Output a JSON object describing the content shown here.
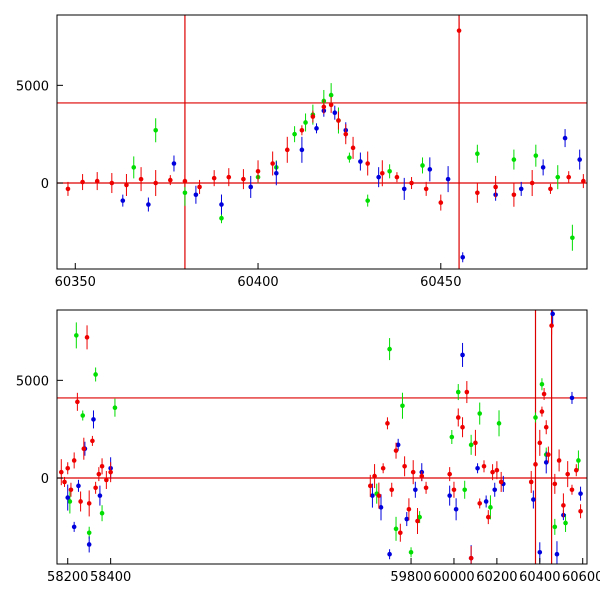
{
  "colors": {
    "frame": "#000000",
    "ref_line": "#dd0000",
    "green": "#00dd00",
    "blue": "#0000dd",
    "red": "#ee0000"
  },
  "chart_data": [
    {
      "type": "scatter",
      "xlim": [
        60345,
        60490
      ],
      "ylim": [
        -4400,
        8600
      ],
      "xticks": [
        60350,
        60400,
        60450
      ],
      "yticks": [
        0,
        5000
      ],
      "hlines": [
        0,
        4100
      ],
      "vlines": [
        60380,
        60455
      ],
      "series": [
        {
          "color": "green",
          "x": [
            60366,
            60372,
            60380,
            60390,
            60400,
            60405,
            60410,
            60413,
            60415,
            60418,
            60420,
            60422,
            60425,
            60430,
            60436,
            60445,
            60460,
            60470,
            60476,
            60482,
            60486
          ],
          "y": [
            800,
            2700,
            -500,
            -1800,
            300,
            800,
            2500,
            3100,
            3500,
            4200,
            4500,
            3200,
            1300,
            -900,
            600,
            900,
            1500,
            1200,
            1400,
            300,
            -2800
          ]
        },
        {
          "color": "blue",
          "x": [
            60363,
            60370,
            60377,
            60383,
            60390,
            60398,
            60405,
            60412,
            60416,
            60418,
            60421,
            60424,
            60428,
            60433,
            60440,
            60447,
            60452,
            60456,
            60465,
            60472,
            60478,
            60484,
            60488
          ],
          "y": [
            -900,
            -1100,
            1000,
            -600,
            -1100,
            -200,
            500,
            1700,
            2800,
            3700,
            3600,
            2700,
            1100,
            300,
            -300,
            700,
            200,
            -3800,
            -600,
            -300,
            800,
            2300,
            1200
          ]
        },
        {
          "color": "red",
          "x": [
            60348,
            60352,
            60356,
            60360,
            60364,
            60368,
            60372,
            60376,
            60380,
            60384,
            60388,
            60392,
            60396,
            60400,
            60404,
            60408,
            60412,
            60415,
            60418,
            60420,
            60422,
            60424,
            60426,
            60430,
            60434,
            60438,
            60442,
            60446,
            60450,
            60455,
            60460,
            60465,
            60470,
            60475,
            60480,
            60485,
            60489
          ],
          "y": [
            -300,
            50,
            100,
            0,
            -100,
            200,
            0,
            150,
            100,
            -200,
            250,
            300,
            200,
            600,
            1000,
            1700,
            2700,
            3400,
            3900,
            4000,
            3200,
            2500,
            1800,
            1000,
            500,
            300,
            0,
            -300,
            -1000,
            7800,
            -500,
            -200,
            -600,
            0,
            -300,
            300,
            100
          ]
        }
      ]
    },
    {
      "type": "scatter",
      "xlim": [
        58150,
        60620
      ],
      "ylim": [
        -4400,
        8600
      ],
      "xticks": [
        58200,
        58400,
        59800,
        60000,
        60200,
        60400,
        60600
      ],
      "yticks": [
        0,
        5000
      ],
      "hlines": [
        0,
        4100
      ],
      "vlines": [
        60380,
        60455
      ],
      "series": [
        {
          "color": "green",
          "x": [
            58210,
            58240,
            58270,
            58300,
            58330,
            58360,
            58420,
            59640,
            59700,
            59730,
            59760,
            59800,
            59840,
            59990,
            60020,
            60050,
            60080,
            60120,
            60170,
            60210,
            60380,
            60410,
            60430,
            60470,
            60520,
            60580
          ],
          "y": [
            -1200,
            7300,
            3200,
            -2800,
            5300,
            -1800,
            3600,
            -800,
            6600,
            -2600,
            3700,
            -3800,
            -2000,
            2100,
            4400,
            -600,
            1700,
            3300,
            -1500,
            2800,
            3100,
            4800,
            1200,
            -2500,
            -2300,
            900
          ]
        },
        {
          "color": "blue",
          "x": [
            58200,
            58230,
            58250,
            58280,
            58300,
            58320,
            58350,
            58400,
            59620,
            59660,
            59700,
            59740,
            59780,
            59820,
            59850,
            59980,
            60010,
            60040,
            60080,
            60110,
            60150,
            60190,
            60230,
            60370,
            60400,
            60430,
            60460,
            60480,
            60510,
            60550,
            60590
          ],
          "y": [
            -1000,
            -2500,
            -400,
            1500,
            -3400,
            3000,
            -900,
            500,
            -900,
            -1500,
            -3900,
            1700,
            -2100,
            -600,
            300,
            -900,
            -1600,
            6300,
            -4100,
            500,
            -1200,
            -600,
            -300,
            -1100,
            -3800,
            800,
            8400,
            -3900,
            -1900,
            4100,
            -800
          ]
        },
        {
          "color": "red",
          "x": [
            58170,
            58185,
            58200,
            58215,
            58230,
            58245,
            58260,
            58275,
            58290,
            58300,
            58315,
            58330,
            58345,
            58360,
            58380,
            58400,
            59610,
            59630,
            59650,
            59670,
            59690,
            59710,
            59730,
            59750,
            59770,
            59790,
            59810,
            59830,
            59850,
            59870,
            59980,
            60000,
            60020,
            60040,
            60060,
            60080,
            60100,
            60120,
            60140,
            60160,
            60180,
            60200,
            60220,
            60360,
            60380,
            60400,
            60410,
            60420,
            60430,
            60440,
            60455,
            60470,
            60490,
            60510,
            60530,
            60550,
            60570,
            60590
          ],
          "y": [
            300,
            -200,
            500,
            -600,
            900,
            3900,
            -1200,
            1500,
            7200,
            -1300,
            1900,
            -500,
            200,
            600,
            -100,
            300,
            -400,
            100,
            -900,
            500,
            2800,
            -600,
            1400,
            -2800,
            600,
            -1600,
            300,
            -2200,
            100,
            -500,
            200,
            -600,
            3100,
            2600,
            4400,
            -4100,
            1800,
            -1300,
            600,
            -2000,
            300,
            400,
            -200,
            -200,
            700,
            1800,
            3400,
            4300,
            2600,
            1200,
            7800,
            -300,
            900,
            -1400,
            200,
            -600,
            400,
            -1700
          ]
        }
      ]
    }
  ]
}
